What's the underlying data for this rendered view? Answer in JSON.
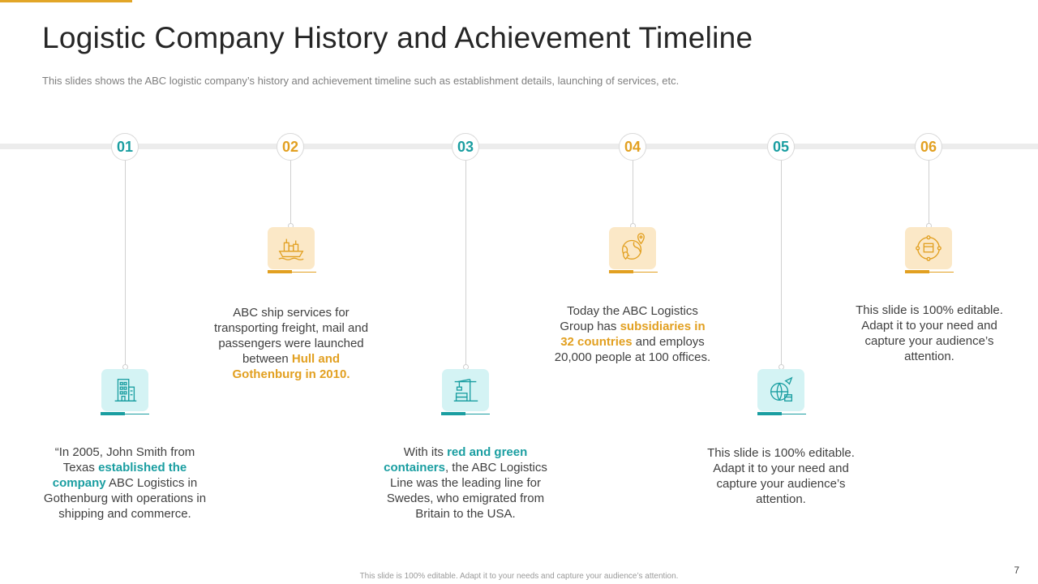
{
  "title": "Logistic Company History and Achievement Timeline",
  "subtitle": "This slides shows the ABC logistic company’s history and achievement timeline such as establishment details, launching of services, etc.",
  "colors": {
    "teal": "#1a9ea1",
    "gold": "#e2a021",
    "accent": "#e2a627"
  },
  "milestones": [
    {
      "number": "01",
      "icon": "office-building-icon",
      "text": {
        "pre": "“In 2005, John Smith from Texas ",
        "highlight": "established the company",
        "post": " ABC Logistics in Gothenburg  with operations in shipping and commerce."
      }
    },
    {
      "number": "02",
      "icon": "cargo-ship-icon",
      "text": {
        "pre": "ABC ship services for transporting freight, mail and passengers were launched between ",
        "highlight": "Hull and Gothenburg in 2010.",
        "post": ""
      }
    },
    {
      "number": "03",
      "icon": "container-crane-icon",
      "text": {
        "pre": "With its ",
        "highlight": "red and green containers",
        "post": ", the ABC Logistics Line was the leading line for Swedes, who emigrated from Britain to the USA."
      }
    },
    {
      "number": "04",
      "icon": "globe-location-icon",
      "text": {
        "pre": "Today the ABC Logistics Group has ",
        "highlight": "subsidiaries in 32 countries",
        "post": " and employs 20,000 people at 100 offices."
      }
    },
    {
      "number": "05",
      "icon": "global-delivery-icon",
      "text": {
        "pre": "This slide is 100% editable. Adapt it to your need and capture your audience’s attention.",
        "highlight": "",
        "post": ""
      }
    },
    {
      "number": "06",
      "icon": "delivery-cycle-icon",
      "text": {
        "pre": "This slide is 100% editable. Adapt it to your need and capture your audience’s attention.",
        "highlight": "",
        "post": ""
      }
    }
  ],
  "footer": "This slide is 100% editable. Adapt it to your needs and capture your audience’s attention.",
  "page_number": "7"
}
